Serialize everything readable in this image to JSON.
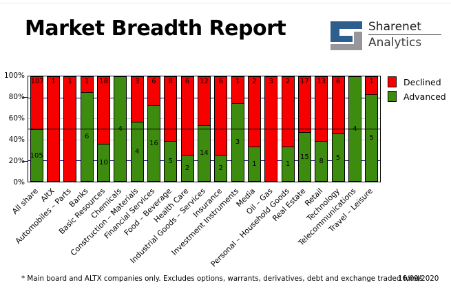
{
  "header": {
    "title": "Market Breadth Report",
    "logo": {
      "line1": "Sharenet",
      "line2": "Analytics"
    }
  },
  "legend": [
    {
      "label": "Declined",
      "color": "#f60000"
    },
    {
      "label": "Advanced",
      "color": "#3d8c10"
    }
  ],
  "footer": {
    "note": "* Main board and ALTX companies only. Excludes options, warrants, derivatives, debt and exchange traded funds",
    "date": "16/09/2020"
  },
  "chart_data": {
    "type": "bar",
    "stacking": "percent",
    "title": "Market Breadth Report",
    "categories": [
      "All share",
      "AltX",
      "Automobiles – Parts",
      "Banks",
      "Basic Resources",
      "Chemicals",
      "Construction – Materials",
      "Financial Services",
      "Food – Beverage",
      "Health Care",
      "Industrial Goods – Services",
      "Insurance",
      "Investment Instruments",
      "Media",
      "Oil – Gas",
      "Personal – Household Goods",
      "Real Estate",
      "Retail",
      "Technology",
      "Telecommunications",
      "Travel – Leisure"
    ],
    "series": [
      {
        "name": "Declined",
        "color": "#f60000",
        "values": [
          107,
          1,
          1,
          1,
          18,
          0,
          3,
          6,
          8,
          6,
          12,
          6,
          1,
          2,
          3,
          2,
          17,
          13,
          6,
          0,
          1
        ]
      },
      {
        "name": "Advanced",
        "color": "#3d8c10",
        "values": [
          105,
          0,
          0,
          6,
          10,
          4,
          4,
          16,
          5,
          2,
          14,
          2,
          3,
          1,
          0,
          1,
          15,
          8,
          5,
          4,
          5
        ]
      }
    ],
    "y_axis": {
      "ticks": [
        "0%",
        "20%",
        "40%",
        "60%",
        "80%",
        "100%"
      ],
      "range": [
        0,
        100
      ],
      "reference_line_pct": 50
    },
    "legend_position": "top-right",
    "gridlines": {
      "navy_at": [
        20,
        80
      ],
      "gray_at": [
        40,
        60
      ]
    }
  }
}
